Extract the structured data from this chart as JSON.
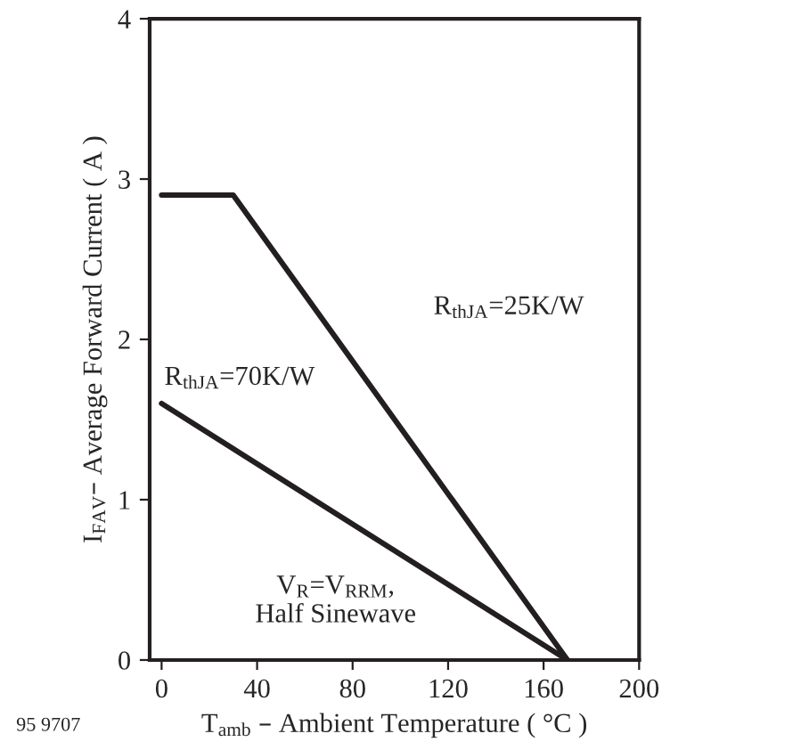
{
  "chart_data": {
    "type": "line",
    "xlabel": "T$_{amb}$ – Ambient Temperature ( °C )",
    "ylabel": "I$_{FAV}$– Average Forward Current ( A )",
    "xlim": [
      -5,
      200
    ],
    "ylim": [
      0,
      4
    ],
    "xticks": [
      0,
      40,
      80,
      120,
      160,
      200
    ],
    "yticks": [
      0,
      1,
      2,
      3,
      4
    ],
    "grid": false,
    "legend": false,
    "marker": "none",
    "line_style": "solid",
    "series": [
      {
        "color": "#231f20",
        "x": [
          0,
          30,
          170
        ],
        "values": [
          2.9,
          2.9,
          0
        ]
      },
      {
        "color": "#231f20",
        "x": [
          0,
          170
        ],
        "values": [
          1.6,
          0
        ]
      }
    ],
    "annotations": [
      "R$_{thJA}$=25K/W",
      "R$_{thJA}$=70K/W",
      "V$_{R}$=V$_{RRM}$,\nHalf Sinewave",
      "95 9707"
    ]
  }
}
